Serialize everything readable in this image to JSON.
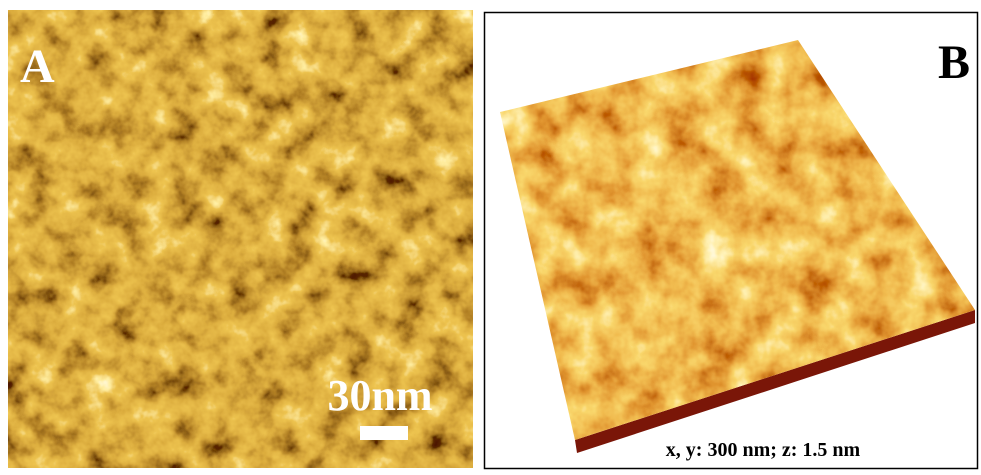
{
  "panels": [
    {
      "label": "A",
      "scale_bar": "30nm"
    },
    {
      "label": "B",
      "caption": "x, y: 300 nm; z: 1.5 nm"
    }
  ]
}
